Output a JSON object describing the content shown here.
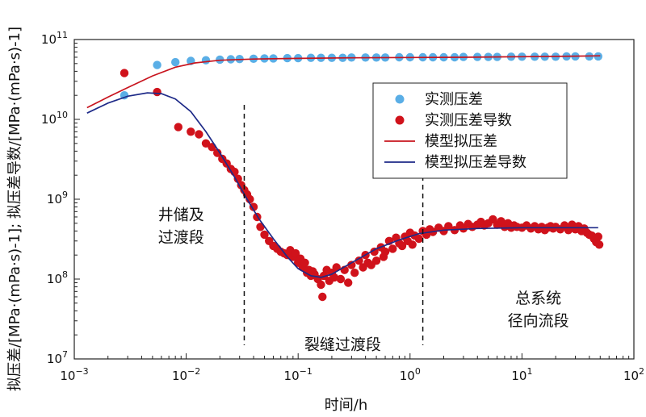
{
  "chart_data": {
    "type": "scatter",
    "x_scale": "log",
    "y_scale": "log",
    "xlim": [
      0.001,
      100
    ],
    "ylim": [
      10000000,
      100000000000
    ],
    "xlabel": "时间/h",
    "ylabel": "拟压差/[MPa·(mPa·s)-1]; 拟压差导数/[MPa·(mPa·s)-1]",
    "x_ticks": [
      {
        "value": 0.001,
        "base": "10",
        "exp": "−3"
      },
      {
        "value": 0.01,
        "base": "10",
        "exp": "−2"
      },
      {
        "value": 0.1,
        "base": "10",
        "exp": "−1"
      },
      {
        "value": 1,
        "base": "10",
        "exp": "0"
      },
      {
        "value": 10,
        "base": "10",
        "exp": "1"
      },
      {
        "value": 100,
        "base": "10",
        "exp": "2"
      }
    ],
    "y_ticks": [
      {
        "value": 10000000,
        "base": "10",
        "exp": "7"
      },
      {
        "value": 100000000,
        "base": "10",
        "exp": "8"
      },
      {
        "value": 1000000000,
        "base": "10",
        "exp": "9"
      },
      {
        "value": 10000000000,
        "base": "10",
        "exp": "10"
      },
      {
        "value": 100000000000,
        "base": "10",
        "exp": "11"
      }
    ],
    "legend_position": "top-right",
    "series": [
      {
        "name": "实测压差",
        "kind": "scatter",
        "color": "#5aaee6",
        "points": [
          [
            0.0028,
            20000000000
          ],
          [
            0.0055,
            48000000000
          ],
          [
            0.008,
            52000000000
          ],
          [
            0.011,
            54000000000
          ],
          [
            0.015,
            55000000000
          ],
          [
            0.02,
            56000000000
          ],
          [
            0.025,
            56500000000
          ],
          [
            0.03,
            57000000000
          ],
          [
            0.04,
            57500000000
          ],
          [
            0.05,
            58000000000
          ],
          [
            0.06,
            58000000000
          ],
          [
            0.08,
            58500000000
          ],
          [
            0.1,
            58500000000
          ],
          [
            0.13,
            59000000000
          ],
          [
            0.16,
            59000000000
          ],
          [
            0.2,
            59000000000
          ],
          [
            0.25,
            59000000000
          ],
          [
            0.3,
            59500000000
          ],
          [
            0.4,
            59500000000
          ],
          [
            0.5,
            59500000000
          ],
          [
            0.6,
            59500000000
          ],
          [
            0.8,
            60000000000
          ],
          [
            1,
            60000000000
          ],
          [
            1.3,
            60000000000
          ],
          [
            1.6,
            60000000000
          ],
          [
            2,
            60000000000
          ],
          [
            2.5,
            60000000000
          ],
          [
            3,
            60500000000
          ],
          [
            4,
            60500000000
          ],
          [
            5,
            60500000000
          ],
          [
            6,
            60500000000
          ],
          [
            8,
            61000000000
          ],
          [
            10,
            61000000000
          ],
          [
            13,
            61000000000
          ],
          [
            16,
            61000000000
          ],
          [
            20,
            61000000000
          ],
          [
            25,
            61500000000
          ],
          [
            30,
            61500000000
          ],
          [
            40,
            61500000000
          ],
          [
            48,
            61500000000
          ]
        ]
      },
      {
        "name": "实测压差导数",
        "kind": "scatter",
        "color": "#d0121b",
        "points": [
          [
            0.0028,
            38000000000
          ],
          [
            0.0055,
            22000000000
          ],
          [
            0.0085,
            8000000000
          ],
          [
            0.011,
            7000000000
          ],
          [
            0.013,
            6500000000
          ],
          [
            0.015,
            5000000000
          ],
          [
            0.017,
            4500000000
          ],
          [
            0.019,
            3800000000
          ],
          [
            0.021,
            3200000000
          ],
          [
            0.023,
            2800000000
          ],
          [
            0.025,
            2400000000
          ],
          [
            0.027,
            2200000000
          ],
          [
            0.029,
            1800000000
          ],
          [
            0.031,
            1500000000
          ],
          [
            0.033,
            1300000000
          ],
          [
            0.035,
            1150000000
          ],
          [
            0.037,
            1000000000
          ],
          [
            0.04,
            800000000
          ],
          [
            0.043,
            600000000
          ],
          [
            0.046,
            450000000
          ],
          [
            0.05,
            360000000
          ],
          [
            0.055,
            300000000
          ],
          [
            0.06,
            260000000
          ],
          [
            0.065,
            240000000
          ],
          [
            0.07,
            220000000
          ],
          [
            0.075,
            210000000
          ],
          [
            0.08,
            200000000
          ],
          [
            0.085,
            230000000
          ],
          [
            0.09,
            190000000
          ],
          [
            0.095,
            210000000
          ],
          [
            0.1,
            160000000
          ],
          [
            0.105,
            180000000
          ],
          [
            0.11,
            140000000
          ],
          [
            0.115,
            160000000
          ],
          [
            0.12,
            120000000
          ],
          [
            0.125,
            130000000
          ],
          [
            0.13,
            110000000
          ],
          [
            0.135,
            125000000
          ],
          [
            0.14,
            115000000
          ],
          [
            0.15,
            100000000
          ],
          [
            0.16,
            85000000
          ],
          [
            0.165,
            60000000
          ],
          [
            0.17,
            110000000
          ],
          [
            0.18,
            130000000
          ],
          [
            0.19,
            95000000
          ],
          [
            0.2,
            120000000
          ],
          [
            0.21,
            105000000
          ],
          [
            0.22,
            140000000
          ],
          [
            0.24,
            100000000
          ],
          [
            0.26,
            130000000
          ],
          [
            0.28,
            90000000
          ],
          [
            0.3,
            150000000
          ],
          [
            0.32,
            120000000
          ],
          [
            0.35,
            170000000
          ],
          [
            0.38,
            140000000
          ],
          [
            0.4,
            200000000
          ],
          [
            0.42,
            160000000
          ],
          [
            0.45,
            150000000
          ],
          [
            0.48,
            220000000
          ],
          [
            0.5,
            170000000
          ],
          [
            0.55,
            250000000
          ],
          [
            0.58,
            190000000
          ],
          [
            0.6,
            220000000
          ],
          [
            0.65,
            300000000
          ],
          [
            0.7,
            240000000
          ],
          [
            0.75,
            330000000
          ],
          [
            0.8,
            280000000
          ],
          [
            0.85,
            260000000
          ],
          [
            0.9,
            340000000
          ],
          [
            0.95,
            300000000
          ],
          [
            1,
            380000000
          ],
          [
            1.05,
            270000000
          ],
          [
            1.1,
            350000000
          ],
          [
            1.2,
            320000000
          ],
          [
            1.3,
            400000000
          ],
          [
            1.4,
            360000000
          ],
          [
            1.5,
            420000000
          ],
          [
            1.6,
            390000000
          ],
          [
            1.8,
            440000000
          ],
          [
            2,
            400000000
          ],
          [
            2.2,
            460000000
          ],
          [
            2.5,
            410000000
          ],
          [
            2.8,
            470000000
          ],
          [
            3,
            430000000
          ],
          [
            3.3,
            490000000
          ],
          [
            3.6,
            450000000
          ],
          [
            4,
            480000000
          ],
          [
            4.3,
            520000000
          ],
          [
            4.6,
            470000000
          ],
          [
            5,
            500000000
          ],
          [
            5.5,
            560000000
          ],
          [
            6,
            480000000
          ],
          [
            6.5,
            530000000
          ],
          [
            7,
            450000000
          ],
          [
            7.5,
            500000000
          ],
          [
            8,
            440000000
          ],
          [
            8.5,
            470000000
          ],
          [
            9,
            450000000
          ],
          [
            10,
            440000000
          ],
          [
            11,
            470000000
          ],
          [
            12,
            430000000
          ],
          [
            13,
            460000000
          ],
          [
            14,
            420000000
          ],
          [
            15,
            450000000
          ],
          [
            16,
            410000000
          ],
          [
            17,
            440000000
          ],
          [
            18,
            460000000
          ],
          [
            19,
            430000000
          ],
          [
            20,
            450000000
          ],
          [
            22,
            420000000
          ],
          [
            24,
            470000000
          ],
          [
            26,
            410000000
          ],
          [
            28,
            480000000
          ],
          [
            30,
            420000000
          ],
          [
            32,
            460000000
          ],
          [
            34,
            400000000
          ],
          [
            36,
            430000000
          ],
          [
            38,
            380000000
          ],
          [
            40,
            360000000
          ],
          [
            42,
            350000000
          ],
          [
            44,
            320000000
          ],
          [
            46,
            290000000
          ],
          [
            48,
            340000000
          ],
          [
            49,
            270000000
          ]
        ]
      },
      {
        "name": "模型拟压差",
        "kind": "line",
        "color": "#c8141e",
        "points": [
          [
            0.0013,
            14000000000
          ],
          [
            0.002,
            19000000000
          ],
          [
            0.003,
            25000000000
          ],
          [
            0.005,
            35000000000
          ],
          [
            0.008,
            45000000000
          ],
          [
            0.012,
            51000000000
          ],
          [
            0.02,
            55000000000
          ],
          [
            0.04,
            57000000000
          ],
          [
            0.1,
            58000000000
          ],
          [
            0.3,
            59000000000
          ],
          [
            1,
            59500000000
          ],
          [
            3,
            60000000000
          ],
          [
            10,
            61000000000
          ],
          [
            30,
            62000000000
          ],
          [
            50,
            62500000000
          ]
        ]
      },
      {
        "name": "模型拟压差导数",
        "kind": "line",
        "color": "#1e2a88",
        "points": [
          [
            0.0013,
            12000000000
          ],
          [
            0.002,
            16000000000
          ],
          [
            0.003,
            19500000000
          ],
          [
            0.0045,
            21500000000
          ],
          [
            0.006,
            21000000000
          ],
          [
            0.008,
            18000000000
          ],
          [
            0.011,
            12500000000
          ],
          [
            0.015,
            7000000000
          ],
          [
            0.02,
            3800000000
          ],
          [
            0.027,
            1900000000
          ],
          [
            0.035,
            1000000000
          ],
          [
            0.045,
            560000000
          ],
          [
            0.06,
            320000000
          ],
          [
            0.08,
            190000000
          ],
          [
            0.1,
            135000000
          ],
          [
            0.13,
            110000000
          ],
          [
            0.16,
            105000000
          ],
          [
            0.2,
            115000000
          ],
          [
            0.3,
            160000000
          ],
          [
            0.5,
            240000000
          ],
          [
            0.8,
            310000000
          ],
          [
            1.2,
            370000000
          ],
          [
            2,
            410000000
          ],
          [
            4,
            430000000
          ],
          [
            10,
            440000000
          ],
          [
            20,
            440000000
          ],
          [
            35,
            440000000
          ],
          [
            48,
            440000000
          ]
        ]
      }
    ],
    "vlines": [
      0.033,
      1.3
    ],
    "annotations": [
      {
        "lines": [
          "井储及",
          "过渡段"
        ],
        "x": 0.009,
        "y": 550000000
      },
      {
        "lines": [
          "裂缝过渡段"
        ],
        "x": 0.25,
        "y": 13000000
      },
      {
        "lines": [
          "总系统",
          "径向流段"
        ],
        "x": 14,
        "y": 50000000
      }
    ]
  }
}
